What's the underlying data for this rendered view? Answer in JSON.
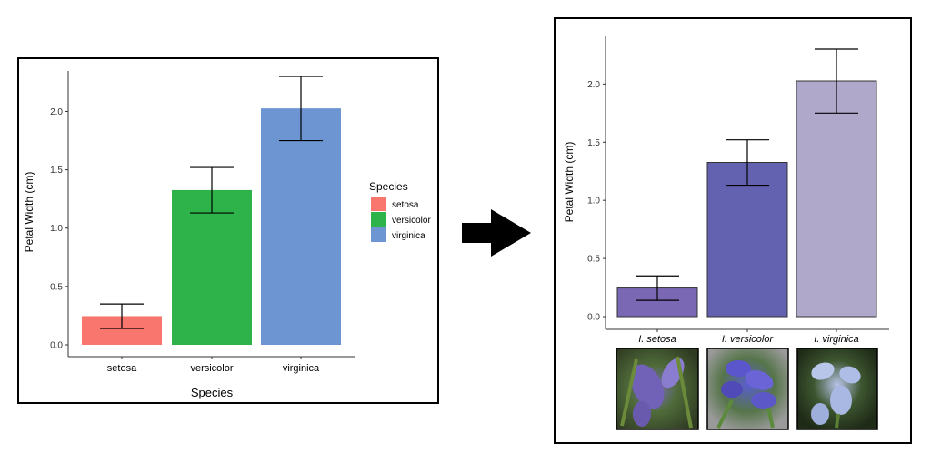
{
  "colors": {
    "setosa_left": "#F8766D",
    "versicolor_left": "#2DB34A",
    "virginica_left": "#6C95D1",
    "setosa_right": "#7B68B5",
    "versicolor_right": "#6262B0",
    "virginica_right": "#AFA8CB",
    "arrow": "#000000"
  },
  "icons": {
    "arrow": "right-arrow-icon",
    "photos": [
      "iris-setosa-photo",
      "iris-versicolor-photo",
      "iris-virginica-photo"
    ]
  },
  "chart_data": [
    {
      "type": "bar",
      "categories": [
        "setosa",
        "versicolor",
        "virginica"
      ],
      "values": [
        0.246,
        1.326,
        2.026
      ],
      "error_low": [
        0.14,
        1.13,
        1.75
      ],
      "error_high": [
        0.35,
        1.52,
        2.3
      ],
      "title": "",
      "xlabel": "Species",
      "ylabel": "Petal Width (cm)",
      "ylim": [
        0,
        2.35
      ],
      "yticks": [
        "0.0",
        "0.5",
        "1.0",
        "1.5",
        "2.0"
      ],
      "grid": false,
      "legend": {
        "title": "Species",
        "placement": "right",
        "entries": [
          "setosa",
          "versicolor",
          "virginica"
        ]
      }
    },
    {
      "type": "bar",
      "categories": [
        "I. setosa",
        "I. versicolor",
        "I. virginica"
      ],
      "values": [
        0.246,
        1.326,
        2.026
      ],
      "error_low": [
        0.14,
        1.13,
        1.75
      ],
      "error_high": [
        0.35,
        1.52,
        2.3
      ],
      "title": "",
      "xlabel": "",
      "ylabel": "Petal Width (cm)",
      "ylim": [
        0,
        2.35
      ],
      "yticks": [
        "0.0",
        "0.5",
        "1.0",
        "1.5",
        "2.0"
      ],
      "grid": false,
      "legend": null
    }
  ]
}
